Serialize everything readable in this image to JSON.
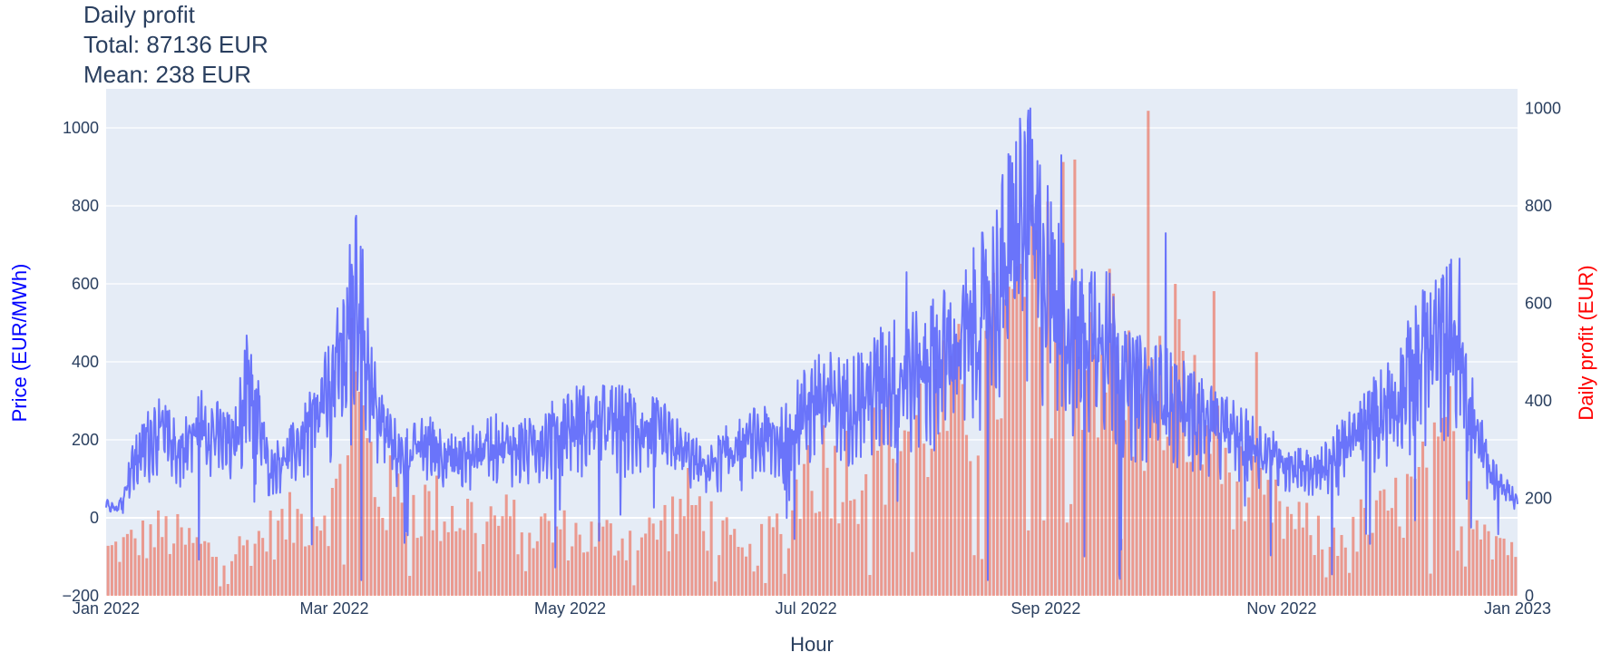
{
  "title": {
    "line1": "Daily profit",
    "line2": "Total: 87136 EUR",
    "line3": "Mean: 238 EUR"
  },
  "colors": {
    "price_line": "#636efa",
    "profit_bar": "#ef553b",
    "plot_bg": "#e5ecf6",
    "grid": "#ffffff",
    "text": "#2a3f5f",
    "y_left_title": "#0000ff",
    "y_right_title": "#ff0000"
  },
  "chart_data": {
    "type": "bar",
    "title": "Daily profit",
    "subtitle": [
      "Total: 87136 EUR",
      "Mean: 238 EUR"
    ],
    "xlabel": "Hour",
    "ylabel_left": "Price (EUR/MWh)",
    "ylabel_right": "Daily profit (EUR)",
    "x_range": [
      "2022-01-01",
      "2023-01-01"
    ],
    "x_ticks": [
      {
        "date": "2022-01-01",
        "label": "Jan 2022"
      },
      {
        "date": "2022-03-01",
        "label": "Mar 2022"
      },
      {
        "date": "2022-05-01",
        "label": "May 2022"
      },
      {
        "date": "2022-07-01",
        "label": "Jul 2022"
      },
      {
        "date": "2022-09-01",
        "label": "Sep 2022"
      },
      {
        "date": "2022-11-01",
        "label": "Nov 2022"
      },
      {
        "date": "2023-01-01",
        "label": "Jan 2023"
      }
    ],
    "y_left": {
      "range": [
        -200,
        1100
      ],
      "ticks": [
        -200,
        0,
        200,
        400,
        600,
        800,
        1000
      ],
      "tick_labels": [
        "−200",
        "0",
        "200",
        "400",
        "600",
        "800",
        "1000"
      ]
    },
    "y_right": {
      "range": [
        0,
        1040
      ],
      "ticks": [
        0,
        200,
        400,
        600,
        800,
        1000
      ],
      "tick_labels": [
        "0",
        "200",
        "400",
        "600",
        "800",
        "1000"
      ]
    },
    "grid": true,
    "series": [
      {
        "type": "line",
        "axis": "left",
        "price_profile": [
          [
            "2022-01-01",
            40
          ],
          [
            "2022-01-04",
            20
          ],
          [
            "2022-01-08",
            130
          ],
          [
            "2022-01-14",
            220
          ],
          [
            "2022-01-20",
            160
          ],
          [
            "2022-01-26",
            230
          ],
          [
            "2022-02-03",
            170
          ],
          [
            "2022-02-07",
            350
          ],
          [
            "2022-02-12",
            120
          ],
          [
            "2022-02-18",
            160
          ],
          [
            "2022-02-24",
            230
          ],
          [
            "2022-03-01",
            330
          ],
          [
            "2022-03-07",
            540
          ],
          [
            "2022-03-12",
            250
          ],
          [
            "2022-03-18",
            150
          ],
          [
            "2022-03-25",
            180
          ],
          [
            "2022-04-02",
            140
          ],
          [
            "2022-04-10",
            180
          ],
          [
            "2022-04-20",
            170
          ],
          [
            "2022-05-01",
            230
          ],
          [
            "2022-05-15",
            230
          ],
          [
            "2022-05-25",
            200
          ],
          [
            "2022-06-05",
            120
          ],
          [
            "2022-06-15",
            190
          ],
          [
            "2022-06-25",
            190
          ],
          [
            "2022-07-03",
            290
          ],
          [
            "2022-07-12",
            280
          ],
          [
            "2022-07-22",
            340
          ],
          [
            "2022-08-01",
            370
          ],
          [
            "2022-08-10",
            420
          ],
          [
            "2022-08-18",
            520
          ],
          [
            "2022-08-26",
            730
          ],
          [
            "2022-09-01",
            600
          ],
          [
            "2022-09-08",
            420
          ],
          [
            "2022-09-15",
            480
          ],
          [
            "2022-09-22",
            320
          ],
          [
            "2022-10-01",
            300
          ],
          [
            "2022-10-10",
            250
          ],
          [
            "2022-10-20",
            200
          ],
          [
            "2022-11-01",
            140
          ],
          [
            "2022-11-10",
            110
          ],
          [
            "2022-11-20",
            200
          ],
          [
            "2022-12-01",
            300
          ],
          [
            "2022-12-08",
            400
          ],
          [
            "2022-12-15",
            450
          ],
          [
            "2022-12-20",
            250
          ],
          [
            "2022-12-25",
            110
          ],
          [
            "2023-01-01",
            40
          ]
        ],
        "peaks": [
          [
            "2022-03-05",
            700
          ],
          [
            "2022-02-06",
            400
          ],
          [
            "2022-07-27",
            630
          ],
          [
            "2022-08-28",
            1050
          ],
          [
            "2022-09-05",
            930
          ],
          [
            "2022-09-20",
            900
          ],
          [
            "2022-10-02",
            730
          ],
          [
            "2022-12-17",
            665
          ],
          [
            "2022-12-08",
            580
          ],
          [
            "2022-09-20",
            -145
          ],
          [
            "2022-11-14",
            -145
          ],
          [
            "2022-12-20",
            -25
          ]
        ]
      },
      {
        "type": "bar",
        "axis": "right",
        "profit_profile": [
          [
            "2022-01-01",
            90
          ],
          [
            "2022-01-15",
            130
          ],
          [
            "2022-01-31",
            80
          ],
          [
            "2022-02-15",
            140
          ],
          [
            "2022-03-01",
            190
          ],
          [
            "2022-03-05",
            430
          ],
          [
            "2022-03-12",
            210
          ],
          [
            "2022-03-20",
            190
          ],
          [
            "2022-04-01",
            170
          ],
          [
            "2022-04-20",
            140
          ],
          [
            "2022-05-05",
            120
          ],
          [
            "2022-05-20",
            120
          ],
          [
            "2022-06-01",
            190
          ],
          [
            "2022-06-15",
            70
          ],
          [
            "2022-06-25",
            150
          ],
          [
            "2022-07-01",
            270
          ],
          [
            "2022-07-15",
            260
          ],
          [
            "2022-07-25",
            340
          ],
          [
            "2022-08-05",
            370
          ],
          [
            "2022-08-15",
            430
          ],
          [
            "2022-08-25",
            560
          ],
          [
            "2022-09-05",
            590
          ],
          [
            "2022-09-15",
            520
          ],
          [
            "2022-09-25",
            370
          ],
          [
            "2022-10-05",
            420
          ],
          [
            "2022-10-15",
            280
          ],
          [
            "2022-10-25",
            190
          ],
          [
            "2022-11-10",
            120
          ],
          [
            "2022-11-25",
            150
          ],
          [
            "2022-12-05",
            210
          ],
          [
            "2022-12-15",
            290
          ],
          [
            "2022-12-25",
            130
          ],
          [
            "2023-01-01",
            90
          ]
        ],
        "peaks": [
          [
            "2022-09-27",
            995
          ],
          [
            "2022-09-08",
            895
          ],
          [
            "2022-09-05",
            890
          ],
          [
            "2022-08-29",
            750
          ],
          [
            "2022-09-18",
            620
          ],
          [
            "2022-10-04",
            640
          ],
          [
            "2022-10-14",
            625
          ],
          [
            "2022-12-14",
            430
          ],
          [
            "2022-03-05",
            570
          ],
          [
            "2022-10-25",
            500
          ]
        ]
      }
    ]
  }
}
